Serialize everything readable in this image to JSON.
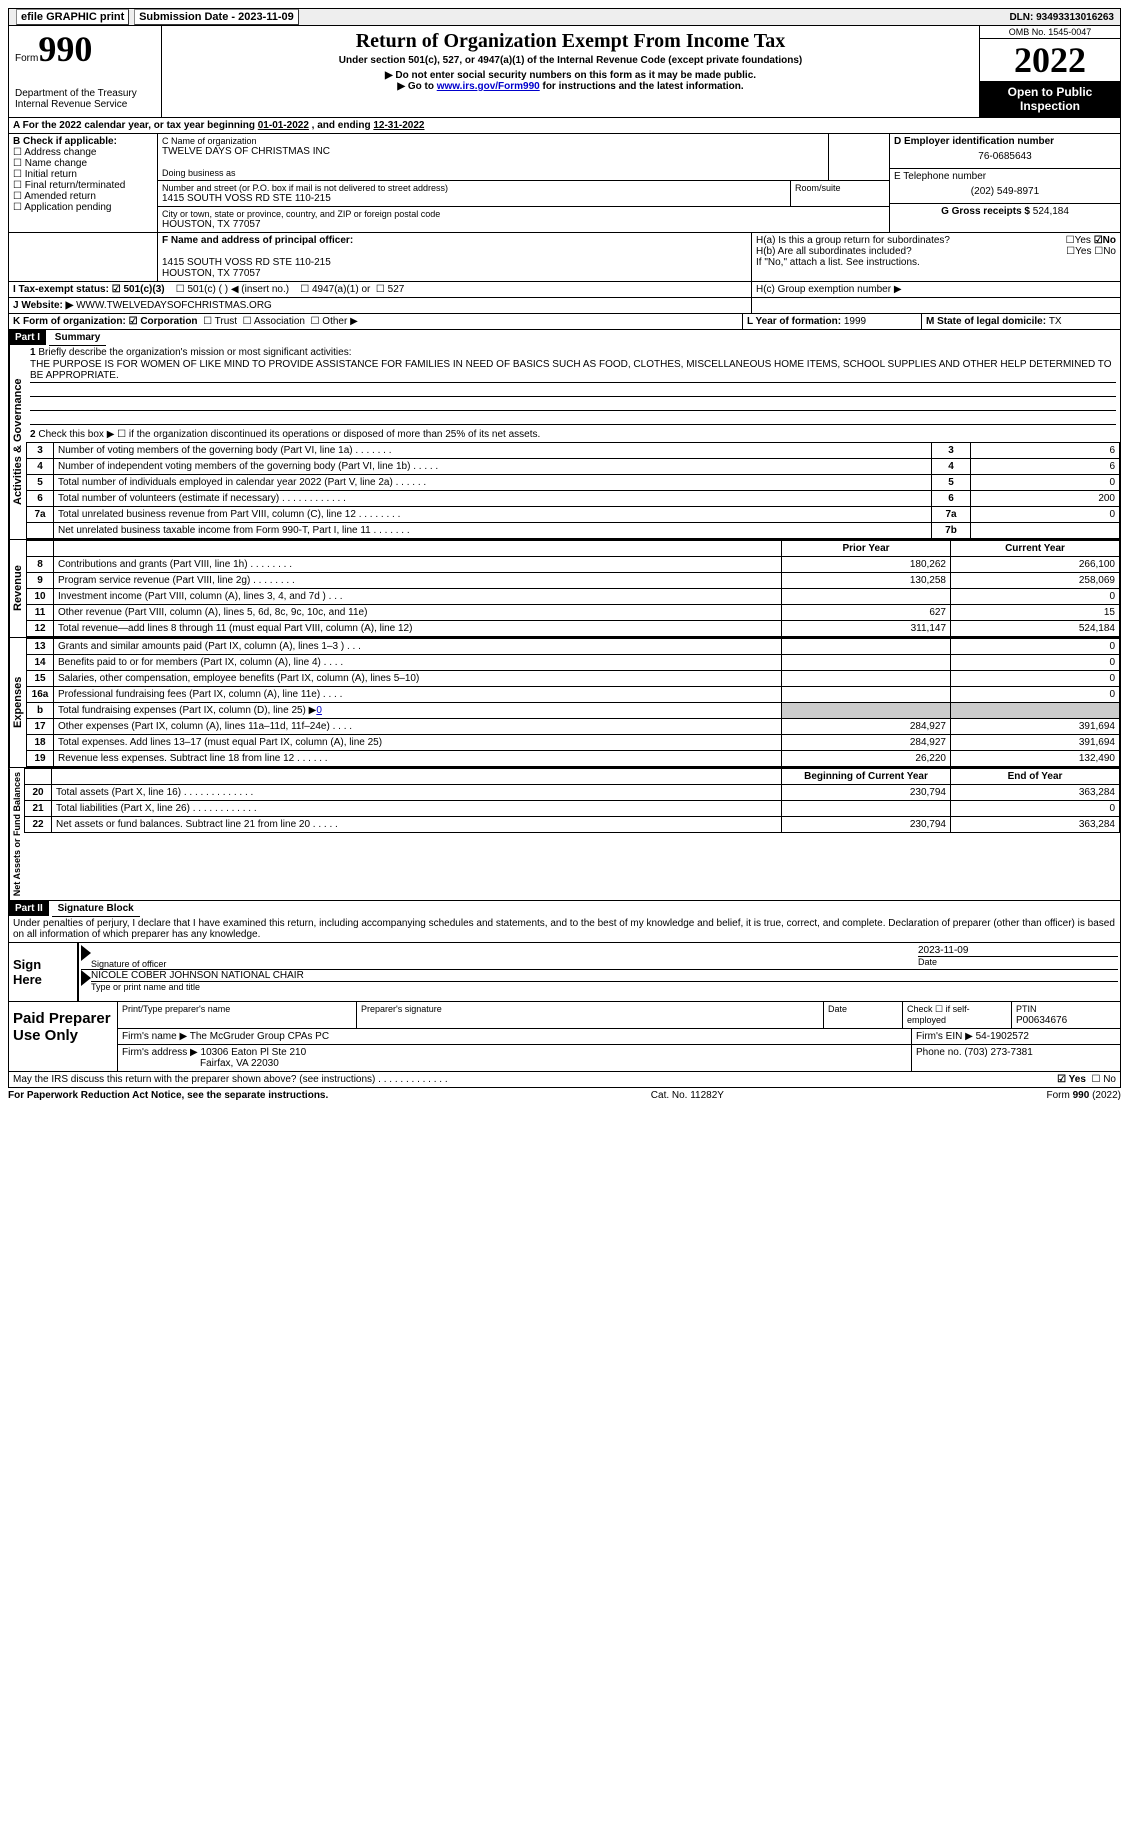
{
  "topbar": {
    "efile": "efile GRAPHIC print",
    "submission_label": "Submission Date - ",
    "submission_date": "2023-11-09",
    "dln_label": "DLN: ",
    "dln": "93493313016263"
  },
  "header": {
    "form_word": "Form",
    "form_number": "990",
    "dept": "Department of the Treasury",
    "irs": "Internal Revenue Service",
    "title": "Return of Organization Exempt From Income Tax",
    "subtitle": "Under section 501(c), 527, or 4947(a)(1) of the Internal Revenue Code (except private foundations)",
    "note1": "▶ Do not enter social security numbers on this form as it may be made public.",
    "note2_pre": "▶ Go to ",
    "note2_link": "www.irs.gov/Form990",
    "note2_post": " for instructions and the latest information.",
    "omb": "OMB No. 1545-0047",
    "year": "2022",
    "open": "Open to Public Inspection"
  },
  "a_line": {
    "text": "A For the 2022 calendar year, or tax year beginning ",
    "begin": "01-01-2022",
    "mid": "   , and ending ",
    "end": "12-31-2022"
  },
  "b": {
    "label": "B Check if applicable:",
    "opts": [
      "Address change",
      "Name change",
      "Initial return",
      "Final return/terminated",
      "Amended return",
      "Application pending"
    ]
  },
  "c": {
    "name_label": "C Name of organization",
    "name": "TWELVE DAYS OF CHRISTMAS INC",
    "dba_label": "Doing business as",
    "dba": "",
    "street_label": "Number and street (or P.O. box if mail is not delivered to street address)",
    "street": "1415 SOUTH VOSS RD STE 110-215",
    "room_label": "Room/suite",
    "city_label": "City or town, state or province, country, and ZIP or foreign postal code",
    "city": "HOUSTON, TX  77057"
  },
  "d": {
    "label": "D Employer identification number",
    "value": "76-0685643"
  },
  "e": {
    "label": "E Telephone number",
    "value": "(202) 549-8971"
  },
  "g": {
    "label": "G Gross receipts $ ",
    "value": "524,184"
  },
  "f": {
    "label": "F Name and address of principal officer:",
    "addr1": "1415 SOUTH VOSS RD STE 110-215",
    "addr2": "HOUSTON, TX  77057"
  },
  "h": {
    "a": "H(a)  Is this a group return for subordinates?",
    "a_no": "No",
    "b": "H(b)  Are all subordinates included?",
    "b_note": "If \"No,\" attach a list. See instructions.",
    "c": "H(c)  Group exemption number ▶",
    "yes": "Yes",
    "no": "No"
  },
  "i": {
    "label": "I   Tax-exempt status:",
    "o1": "501(c)(3)",
    "o2": "501(c) (  ) ◀ (insert no.)",
    "o3": "4947(a)(1) or",
    "o4": "527"
  },
  "j": {
    "label": "J   Website: ▶",
    "value": "WWW.TWELVEDAYSOFCHRISTMAS.ORG"
  },
  "k": {
    "label": "K Form of organization:",
    "corp": "Corporation",
    "trust": "Trust",
    "assoc": "Association",
    "other": "Other ▶"
  },
  "l": {
    "label": "L Year of formation: ",
    "value": "1999"
  },
  "m": {
    "label": "M State of legal domicile: ",
    "value": "TX"
  },
  "part1": {
    "hdr": "Part I",
    "title": "Summary",
    "side_ag": "Activities & Governance",
    "side_rev": "Revenue",
    "side_exp": "Expenses",
    "side_net": "Net Assets or Fund Balances",
    "l1": "Briefly describe the organization's mission or most significant activities:",
    "mission": "THE PURPOSE IS FOR WOMEN OF LIKE MIND TO PROVIDE ASSISTANCE FOR FAMILIES IN NEED OF BASICS SUCH AS FOOD, CLOTHES, MISCELLANEOUS HOME ITEMS, SCHOOL SUPPLIES AND OTHER HELP DETERMINED TO BE APPROPRIATE.",
    "l2": "Check this box ▶ ☐  if the organization discontinued its operations or disposed of more than 25% of its net assets.",
    "rows_gov": [
      {
        "n": "3",
        "t": "Number of voting members of the governing body (Part VI, line 1a)   .    .    .    .    .    .    .",
        "box": "3",
        "v": "6"
      },
      {
        "n": "4",
        "t": "Number of independent voting members of the governing body (Part VI, line 1b)   .    .    .    .    .",
        "box": "4",
        "v": "6"
      },
      {
        "n": "5",
        "t": "Total number of individuals employed in calendar year 2022 (Part V, line 2a)   .    .    .    .    .    .",
        "box": "5",
        "v": "0"
      },
      {
        "n": "6",
        "t": "Total number of volunteers (estimate if necessary)    .    .    .    .    .    .    .    .    .    .    .    .",
        "box": "6",
        "v": "200"
      },
      {
        "n": "7a",
        "t": "Total unrelated business revenue from Part VIII, column (C), line 12    .    .    .    .    .    .    .    .",
        "box": "7a",
        "v": "0"
      },
      {
        "n": "",
        "t": "Net unrelated business taxable income from Form 990-T, Part I, line 11   .    .    .    .    .    .    .",
        "box": "7b",
        "v": ""
      }
    ],
    "col_prior": "Prior Year",
    "col_curr": "Current Year",
    "rev": [
      {
        "n": "8",
        "t": "Contributions and grants (Part VIII, line 1h)   .    .    .    .    .    .    .    .",
        "p": "180,262",
        "c": "266,100"
      },
      {
        "n": "9",
        "t": "Program service revenue (Part VIII, line 2g)    .    .    .    .    .    .    .    .",
        "p": "130,258",
        "c": "258,069"
      },
      {
        "n": "10",
        "t": "Investment income (Part VIII, column (A), lines 3, 4, and 7d )    .    .    .",
        "p": "",
        "c": "0"
      },
      {
        "n": "11",
        "t": "Other revenue (Part VIII, column (A), lines 5, 6d, 8c, 9c, 10c, and 11e)",
        "p": "627",
        "c": "15"
      },
      {
        "n": "12",
        "t": "Total revenue—add lines 8 through 11 (must equal Part VIII, column (A), line 12)",
        "p": "311,147",
        "c": "524,184"
      }
    ],
    "exp": [
      {
        "n": "13",
        "t": "Grants and similar amounts paid (Part IX, column (A), lines 1–3 )   .    .    .",
        "p": "",
        "c": "0"
      },
      {
        "n": "14",
        "t": "Benefits paid to or for members (Part IX, column (A), line 4)   .    .    .    .",
        "p": "",
        "c": "0"
      },
      {
        "n": "15",
        "t": "Salaries, other compensation, employee benefits (Part IX, column (A), lines 5–10)",
        "p": "",
        "c": "0"
      },
      {
        "n": "16a",
        "t": "Professional fundraising fees (Part IX, column (A), line 11e)    .    .    .    .",
        "p": "",
        "c": "0"
      },
      {
        "n": "b",
        "t": "Total fundraising expenses (Part IX, column (D), line 25) ▶",
        "fund": "0",
        "shade": true
      },
      {
        "n": "17",
        "t": "Other expenses (Part IX, column (A), lines 11a–11d, 11f–24e)   .    .    .    .",
        "p": "284,927",
        "c": "391,694"
      },
      {
        "n": "18",
        "t": "Total expenses. Add lines 13–17 (must equal Part IX, column (A), line 25)",
        "p": "284,927",
        "c": "391,694"
      },
      {
        "n": "19",
        "t": "Revenue less expenses. Subtract line 18 from line 12   .    .    .    .    .    .",
        "p": "26,220",
        "c": "132,490"
      }
    ],
    "col_boy": "Beginning of Current Year",
    "col_eoy": "End of Year",
    "net": [
      {
        "n": "20",
        "t": "Total assets (Part X, line 16)   .    .    .    .    .    .    .    .    .    .    .    .    .",
        "p": "230,794",
        "c": "363,284"
      },
      {
        "n": "21",
        "t": "Total liabilities (Part X, line 26)   .    .    .    .    .    .    .    .    .    .    .    .",
        "p": "",
        "c": "0"
      },
      {
        "n": "22",
        "t": "Net assets or fund balances. Subtract line 21 from line 20   .    .    .    .    .",
        "p": "230,794",
        "c": "363,284"
      }
    ]
  },
  "part2": {
    "hdr": "Part II",
    "title": "Signature Block",
    "decl": "Under penalties of perjury, I declare that I have examined this return, including accompanying schedules and statements, and to the best of my knowledge and belief, it is true, correct, and complete. Declaration of preparer (other than officer) is based on all information of which preparer has any knowledge.",
    "sign_here": "Sign Here",
    "sig_officer": "Signature of officer",
    "sig_date": "2023-11-09",
    "date_label": "Date",
    "name_title": "NICOLE COBER JOHNSON  NATIONAL CHAIR",
    "name_label": "Type or print name and title",
    "paid": "Paid Preparer Use Only",
    "pp_name_label": "Print/Type preparer's name",
    "pp_sig_label": "Preparer's signature",
    "pp_date_label": "Date",
    "pp_check": "Check ☐ if self-employed",
    "ptin_label": "PTIN",
    "ptin": "P00634676",
    "firm_name_label": "Firm's name    ▶ ",
    "firm_name": "The McGruder Group CPAs PC",
    "firm_ein_label": "Firm's EIN ▶ ",
    "firm_ein": "54-1902572",
    "firm_addr_label": "Firm's address ▶ ",
    "firm_addr1": "10306 Eaton Pl Ste 210",
    "firm_addr2": "Fairfax, VA  22030",
    "phone_label": "Phone no. ",
    "phone": "(703) 273-7381",
    "discuss": "May the IRS discuss this return with the preparer shown above? (see instructions)    .    .    .    .    .    .    .    .    .    .    .    .    .",
    "discuss_yes": "Yes",
    "discuss_no": "No"
  },
  "footer": {
    "left": "For Paperwork Reduction Act Notice, see the separate instructions.",
    "mid": "Cat. No. 11282Y",
    "right": "Form 990 (2022)"
  }
}
